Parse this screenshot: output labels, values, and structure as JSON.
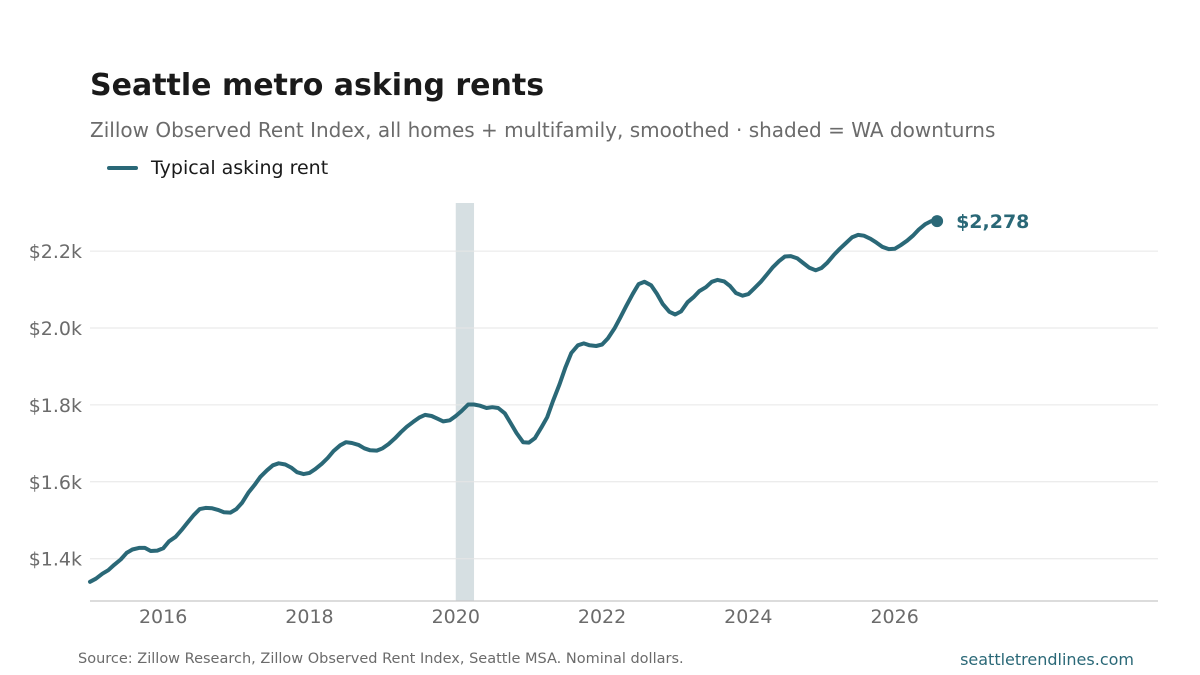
{
  "title": "Seattle metro asking rents",
  "subtitle": "Zillow Observed Rent Index, all homes + multifamily, smoothed · shaded = WA downturns",
  "legend": {
    "label": "Typical asking rent"
  },
  "footer": {
    "source": "Source: Zillow Research, Zillow Observed Rent Index, Seattle MSA. Nominal dollars.",
    "site": "seattletrendlines.com"
  },
  "colors": {
    "line": "#2a6877",
    "shade": "#d6dfe2",
    "grid": "#e6e6e6",
    "axis_text": "#6b6b6b"
  },
  "chart_data": {
    "type": "line",
    "title": "Seattle metro asking rents",
    "subtitle": "Zillow Observed Rent Index, all homes + multifamily, smoothed · shaded = WA downturns",
    "xlabel": "",
    "ylabel": "",
    "xlim": [
      2015.0,
      2029.6
    ],
    "ylim": [
      1290,
      2325
    ],
    "x_ticks": [
      2016,
      2018,
      2020,
      2022,
      2024,
      2026
    ],
    "x_tick_labels": [
      "2016",
      "2018",
      "2020",
      "2022",
      "2024",
      "2026"
    ],
    "y_ticks": [
      1400,
      1600,
      1800,
      2000,
      2200
    ],
    "y_tick_labels": [
      "$1.4k",
      "$1.6k",
      "$1.8k",
      "$2.0k",
      "$2.2k"
    ],
    "grid": true,
    "legend_position": "top-left",
    "shaded_regions": [
      {
        "start": 2020.0,
        "end": 2020.25
      }
    ],
    "end_label": "$2,278",
    "series": [
      {
        "name": "Typical asking rent",
        "x": [
          2015.0,
          2015.08,
          2015.17,
          2015.25,
          2015.33,
          2015.42,
          2015.5,
          2015.58,
          2015.67,
          2015.75,
          2015.83,
          2015.92,
          2016.0,
          2016.08,
          2016.17,
          2016.25,
          2016.33,
          2016.42,
          2016.5,
          2016.58,
          2016.67,
          2016.75,
          2016.83,
          2016.92,
          2017.0,
          2017.08,
          2017.17,
          2017.25,
          2017.33,
          2017.42,
          2017.5,
          2017.58,
          2017.67,
          2017.75,
          2017.83,
          2017.92,
          2018.0,
          2018.08,
          2018.17,
          2018.25,
          2018.33,
          2018.42,
          2018.5,
          2018.58,
          2018.67,
          2018.75,
          2018.83,
          2018.92,
          2019.0,
          2019.08,
          2019.17,
          2019.25,
          2019.33,
          2019.42,
          2019.5,
          2019.58,
          2019.67,
          2019.75,
          2019.83,
          2019.92,
          2020.0,
          2020.08,
          2020.17,
          2020.25,
          2020.33,
          2020.42,
          2020.5,
          2020.58,
          2020.67,
          2020.75,
          2020.83,
          2020.92,
          2021.0,
          2021.08,
          2021.17,
          2021.25,
          2021.33,
          2021.42,
          2021.5,
          2021.58,
          2021.67,
          2021.75,
          2021.83,
          2021.92,
          2022.0,
          2022.08,
          2022.17,
          2022.25,
          2022.33,
          2022.42,
          2022.5,
          2022.58,
          2022.67,
          2022.75,
          2022.83,
          2022.92,
          2023.0,
          2023.08,
          2023.17,
          2023.25,
          2023.33,
          2023.42,
          2023.5,
          2023.58,
          2023.67,
          2023.75,
          2023.83,
          2023.92,
          2024.0,
          2024.08,
          2024.17,
          2024.25,
          2024.33,
          2024.42,
          2024.5,
          2024.58,
          2024.67,
          2024.75,
          2024.83,
          2024.92,
          2025.0,
          2025.08,
          2025.17,
          2025.25,
          2025.33,
          2025.42,
          2025.5,
          2025.58,
          2025.67,
          2025.75,
          2025.83,
          2025.92,
          2026.0,
          2026.08,
          2026.17,
          2026.25,
          2026.33,
          2026.42,
          2026.5,
          2026.58
        ],
        "y": [
          1340,
          1348,
          1361,
          1370,
          1384,
          1398,
          1415,
          1424,
          1428,
          1428,
          1420,
          1421,
          1427,
          1445,
          1457,
          1474,
          1493,
          1514,
          1529,
          1532,
          1531,
          1527,
          1521,
          1520,
          1529,
          1546,
          1573,
          1592,
          1613,
          1630,
          1643,
          1648,
          1645,
          1637,
          1625,
          1620,
          1623,
          1633,
          1647,
          1662,
          1680,
          1695,
          1703,
          1701,
          1696,
          1687,
          1682,
          1681,
          1687,
          1698,
          1713,
          1729,
          1743,
          1756,
          1767,
          1774,
          1771,
          1764,
          1757,
          1760,
          1771,
          1784,
          1801,
          1801,
          1798,
          1792,
          1794,
          1792,
          1778,
          1753,
          1727,
          1703,
          1702,
          1713,
          1741,
          1768,
          1810,
          1854,
          1898,
          1935,
          1955,
          1960,
          1955,
          1953,
          1957,
          1973,
          1999,
          2027,
          2057,
          2089,
          2114,
          2120,
          2111,
          2089,
          2062,
          2042,
          2035,
          2043,
          2067,
          2080,
          2096,
          2106,
          2120,
          2125,
          2121,
          2109,
          2091,
          2084,
          2088,
          2103,
          2120,
          2138,
          2157,
          2174,
          2186,
          2187,
          2181,
          2169,
          2157,
          2150,
          2156,
          2170,
          2190,
          2206,
          2220,
          2236,
          2242,
          2240,
          2232,
          2222,
          2211,
          2205,
          2206,
          2215,
          2227,
          2240,
          2256,
          2270,
          2278,
          2278
        ]
      }
    ]
  }
}
